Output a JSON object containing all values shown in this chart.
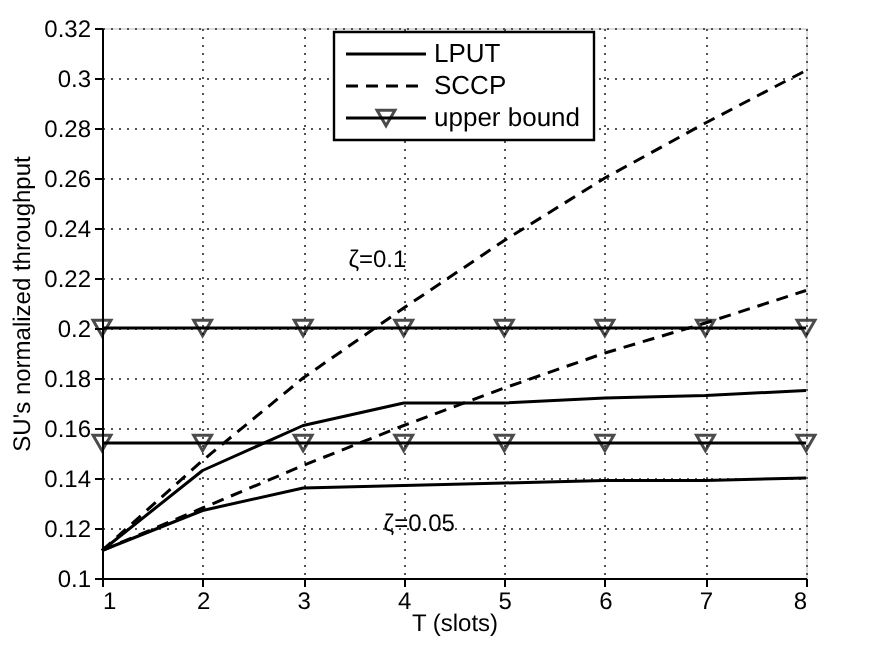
{
  "chart_data": {
    "type": "line",
    "xlabel": "T (slots)",
    "ylabel": "SU's normalized throughput",
    "x": [
      1,
      2,
      3,
      4,
      5,
      6,
      7,
      8
    ],
    "series": [
      {
        "name": "LPUT",
        "color": "#000000",
        "line_style": "solid",
        "values": [
          0.111,
          0.143,
          0.161,
          0.17,
          0.17,
          0.172,
          0.173,
          0.175
        ]
      },
      {
        "name": "SCCP",
        "color": "#000000",
        "line_style": "dashed",
        "values": [
          0.111,
          0.147,
          0.18,
          0.208,
          0.235,
          0.26,
          0.282,
          0.303
        ]
      },
      {
        "name": "upper bound",
        "color": "#000000",
        "line_style": "solid",
        "marker": "triangle",
        "values": [
          0.2,
          0.2,
          0.2,
          0.2,
          0.2,
          0.2,
          0.2,
          0.2
        ]
      },
      {
        "color": "#000000",
        "line_style": "solid",
        "values": [
          0.111,
          0.127,
          0.136,
          0.137,
          0.138,
          0.139,
          0.139,
          0.14
        ]
      },
      {
        "color": "#000000",
        "line_style": "dashed",
        "values": [
          0.111,
          0.128,
          0.145,
          0.161,
          0.176,
          0.19,
          0.202,
          0.215
        ]
      },
      {
        "color": "#000000",
        "line_style": "solid",
        "marker": "triangle",
        "values": [
          0.154,
          0.154,
          0.154,
          0.154,
          0.154,
          0.154,
          0.154,
          0.154
        ]
      }
    ],
    "xlim": [
      1,
      8
    ],
    "xticks": [
      1,
      2,
      3,
      4,
      5,
      6,
      7,
      8
    ],
    "ylim": [
      0.1,
      0.32
    ],
    "yticks": [
      0.1,
      0.12,
      0.14,
      0.16,
      0.18,
      0.2,
      0.22,
      0.24,
      0.26,
      0.28,
      0.3,
      0.32
    ],
    "grid": true,
    "legend": "top",
    "annotations": [
      "ζ=0.1",
      "ζ=0.05"
    ]
  }
}
